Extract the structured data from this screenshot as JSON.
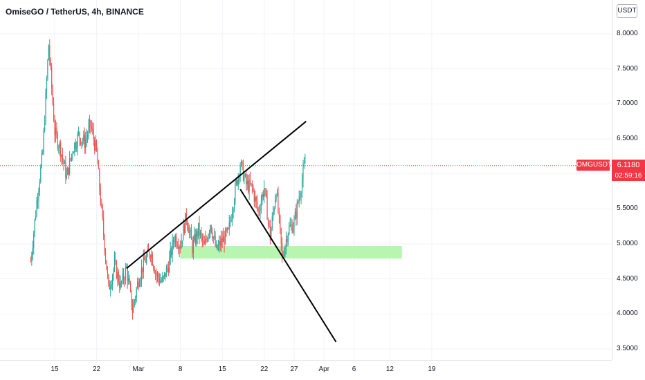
{
  "header": {
    "title": "OmiseGO / TetherUS, 4h, BINANCE"
  },
  "price_axis": {
    "currency": "USDT"
  },
  "current_price": {
    "symbol": "OMGUSDT",
    "price": "6.1180",
    "countdown": "02:59:16",
    "value": 6.118
  },
  "colors": {
    "up": "#26a69a",
    "down": "#ef5350",
    "zone": "#b7f5b0",
    "badge": "#f23645",
    "trendline": "#000000",
    "grid": "#f0f3fa"
  },
  "chart_data": {
    "type": "candlestick",
    "symbol": "OMGUSDT",
    "timeframe": "4h",
    "exchange": "BINANCE",
    "ylim": [
      3.4,
      8.3
    ],
    "y_ticks": [
      "8.0000",
      "7.5000",
      "7.0000",
      "6.5000",
      "6.0000",
      "5.5000",
      "5.0000",
      "4.5000",
      "4.0000",
      "3.5000"
    ],
    "x_ticks": [
      "15",
      "22",
      "Mar",
      "8",
      "15",
      "22",
      "27",
      "Apr",
      "6",
      "12",
      "19"
    ],
    "price_path": [
      {
        "date": "Feb 11",
        "price": 4.75
      },
      {
        "date": "Feb 12",
        "price": 5.6
      },
      {
        "date": "Feb 13",
        "price": 6.3
      },
      {
        "date": "Feb 14",
        "price": 7.85
      },
      {
        "date": "Feb 15",
        "price": 6.6
      },
      {
        "date": "Feb 16",
        "price": 6.35
      },
      {
        "date": "Feb 17",
        "price": 5.95
      },
      {
        "date": "Feb 18",
        "price": 6.35
      },
      {
        "date": "Feb 19",
        "price": 6.55
      },
      {
        "date": "Feb 20",
        "price": 6.45
      },
      {
        "date": "Feb 21",
        "price": 6.7
      },
      {
        "date": "Feb 22",
        "price": 6.3
      },
      {
        "date": "Feb 23",
        "price": 5.3
      },
      {
        "date": "Feb 24",
        "price": 4.35
      },
      {
        "date": "Feb 25",
        "price": 4.7
      },
      {
        "date": "Feb 26",
        "price": 4.4
      },
      {
        "date": "Feb 27",
        "price": 4.65
      },
      {
        "date": "Feb 28",
        "price": 4.05
      },
      {
        "date": "Mar 1",
        "price": 4.5
      },
      {
        "date": "Mar 2",
        "price": 4.75
      },
      {
        "date": "Mar 3",
        "price": 4.9
      },
      {
        "date": "Mar 4",
        "price": 4.55
      },
      {
        "date": "Mar 5",
        "price": 4.45
      },
      {
        "date": "Mar 6",
        "price": 4.7
      },
      {
        "date": "Mar 7",
        "price": 5.1
      },
      {
        "date": "Mar 8",
        "price": 5.0
      },
      {
        "date": "Mar 9",
        "price": 5.4
      },
      {
        "date": "Mar 10",
        "price": 4.95
      },
      {
        "date": "Mar 11",
        "price": 5.2
      },
      {
        "date": "Mar 12",
        "price": 4.95
      },
      {
        "date": "Mar 13",
        "price": 5.3
      },
      {
        "date": "Mar 14",
        "price": 4.9
      },
      {
        "date": "Mar 15",
        "price": 5.05
      },
      {
        "date": "Mar 16",
        "price": 5.15
      },
      {
        "date": "Mar 17",
        "price": 5.7
      },
      {
        "date": "Mar 18",
        "price": 6.15
      },
      {
        "date": "Mar 19",
        "price": 5.85
      },
      {
        "date": "Mar 20",
        "price": 5.8
      },
      {
        "date": "Mar 21",
        "price": 5.45
      },
      {
        "date": "Mar 22",
        "price": 5.8
      },
      {
        "date": "Mar 23",
        "price": 5.1
      },
      {
        "date": "Mar 24",
        "price": 5.8
      },
      {
        "date": "Mar 25",
        "price": 4.8
      },
      {
        "date": "Mar 26",
        "price": 5.2
      },
      {
        "date": "Mar 27",
        "price": 5.3
      },
      {
        "date": "Mar 28",
        "price": 5.75
      },
      {
        "date": "Mar 29",
        "price": 6.25
      }
    ],
    "trendlines": [
      {
        "from": {
          "date": "Feb 27",
          "price": 4.65
        },
        "to": {
          "date": "Mar 29",
          "price": 6.75
        }
      },
      {
        "from": {
          "date": "Mar 18",
          "price": 5.78
        },
        "to": {
          "date": "Apr 3",
          "price": 3.6
        }
      }
    ],
    "zones": [
      {
        "from_date": "Mar 8",
        "to_date": "Apr 14",
        "low": 4.79,
        "high": 4.97
      }
    ],
    "current_price_line": 6.118
  }
}
